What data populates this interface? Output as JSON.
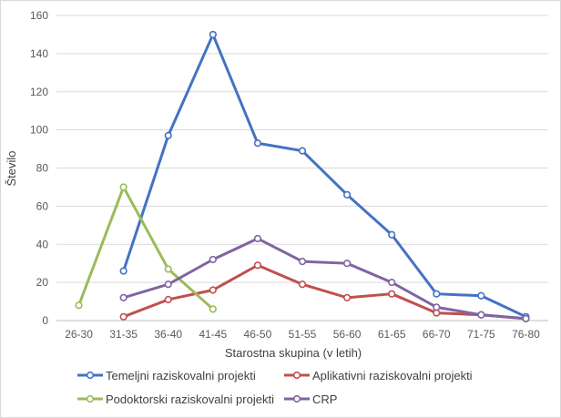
{
  "chart_data": {
    "type": "line",
    "title": "",
    "xlabel": "Starostna skupina  (v letih)",
    "ylabel": "Število",
    "ylim": [
      0,
      160
    ],
    "yticks": [
      0,
      20,
      40,
      60,
      80,
      100,
      120,
      140,
      160
    ],
    "grid": true,
    "legend_position": "bottom",
    "categories": [
      "26-30",
      "31-35",
      "36-40",
      "41-45",
      "46-50",
      "51-55",
      "56-60",
      "61-65",
      "66-70",
      "71-75",
      "76-80"
    ],
    "series": [
      {
        "name": "Temeljni raziskovalni projekti",
        "color": "#4472C4",
        "values": [
          null,
          26,
          97,
          150,
          93,
          89,
          66,
          45,
          14,
          13,
          2
        ]
      },
      {
        "name": "Aplikativni raziskovalni projekti",
        "color": "#C0504D",
        "values": [
          null,
          2,
          11,
          16,
          29,
          19,
          12,
          14,
          4,
          3,
          1
        ]
      },
      {
        "name": "Podoktorski raziskovalni projekti",
        "color": "#9BBB59",
        "values": [
          8,
          70,
          27,
          6,
          null,
          null,
          null,
          null,
          null,
          null,
          null
        ]
      },
      {
        "name": "CRP",
        "color": "#8064A2",
        "values": [
          null,
          12,
          19,
          32,
          43,
          31,
          30,
          20,
          7,
          3,
          1
        ]
      }
    ]
  }
}
